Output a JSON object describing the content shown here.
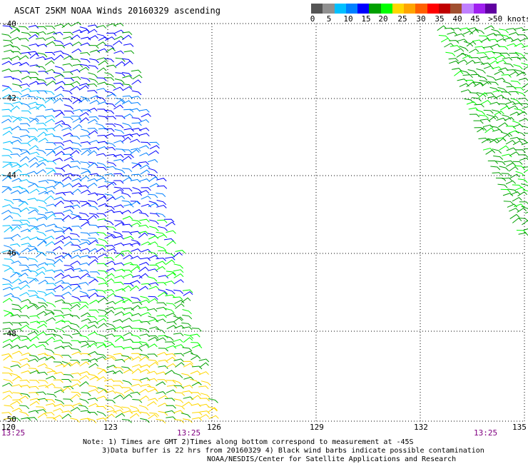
{
  "title": "ASCAT 25KM NOAA Winds 20160329 ascending",
  "colorbar": {
    "colors": [
      "#555555",
      "#909090",
      "#00c0ff",
      "#0080ff",
      "#0000ff",
      "#00a000",
      "#00ff00",
      "#ffd700",
      "#ffa500",
      "#ff6000",
      "#ff0000",
      "#c00000",
      "#a05030",
      "#c080ff",
      "#a020f0",
      "#6000a0"
    ],
    "labels": [
      "0",
      "5",
      "10",
      "15",
      "20",
      "25",
      "30",
      "35",
      "40",
      "45",
      ">50 knots"
    ]
  },
  "axes": {
    "lat_labels": [
      "-40",
      "-42",
      "-44",
      "-46",
      "-48",
      "-50"
    ],
    "lon_labels": [
      "120",
      "123",
      "126",
      "129",
      "132",
      "135"
    ]
  },
  "times": [
    "13:25",
    "13:25",
    "13:25"
  ],
  "notes": [
    "Note: 1) Times are GMT 2)Times along bottom correspond to measurement at -45S",
    "3)Data buffer is 22 hrs from 20160329 4) Black wind barbs indicate possible contamination",
    "NOAA/NESDIS/Center for Satellite Applications and Research"
  ]
}
